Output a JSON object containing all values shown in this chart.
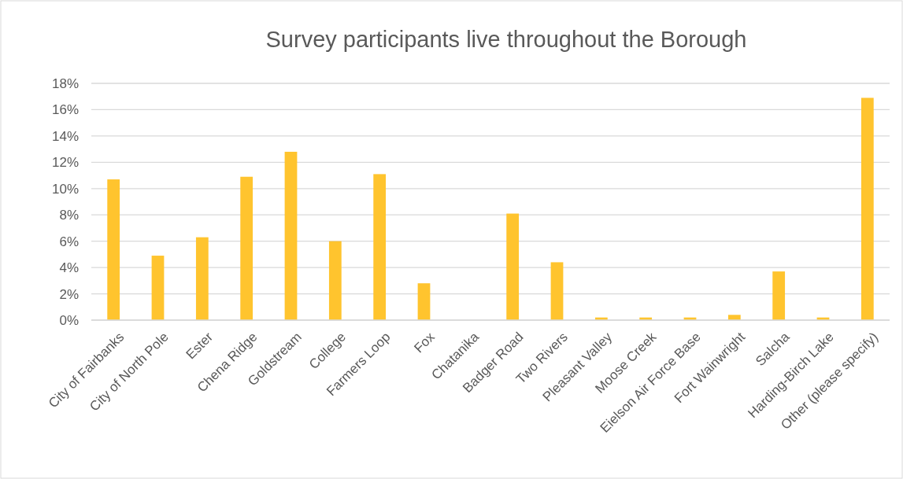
{
  "chart_data": {
    "type": "bar",
    "title": "Survey participants live throughout the Borough",
    "categories": [
      "City of Fairbanks",
      "City of North Pole",
      "Ester",
      "Chena Ridge",
      "Goldstream",
      "College",
      "Farmers Loop",
      "Fox",
      "Chatanika",
      "Badger Road",
      "Two Rivers",
      "Pleasant Valley",
      "Moose Creek",
      "Eielson Air Force Base",
      "Fort Wainwright",
      "Salcha",
      "Harding-Birch Lake",
      "Other (please specify)"
    ],
    "values": [
      10.7,
      4.9,
      6.3,
      10.9,
      12.8,
      6.0,
      11.1,
      2.8,
      0,
      8.1,
      4.4,
      0.2,
      0.2,
      0.2,
      0.4,
      3.7,
      0.2,
      16.9
    ],
    "color": "#ffc42e",
    "ylim": [
      0,
      18
    ],
    "yticks": [
      {
        "value": 0,
        "label": "0%"
      },
      {
        "value": 2,
        "label": "2%"
      },
      {
        "value": 4,
        "label": "4%"
      },
      {
        "value": 6,
        "label": "6%"
      },
      {
        "value": 8,
        "label": "8%"
      },
      {
        "value": 10,
        "label": "10%"
      },
      {
        "value": 12,
        "label": "12%"
      },
      {
        "value": 14,
        "label": "14%"
      },
      {
        "value": 16,
        "label": "16%"
      },
      {
        "value": 18,
        "label": "18%"
      }
    ],
    "grid": true
  }
}
